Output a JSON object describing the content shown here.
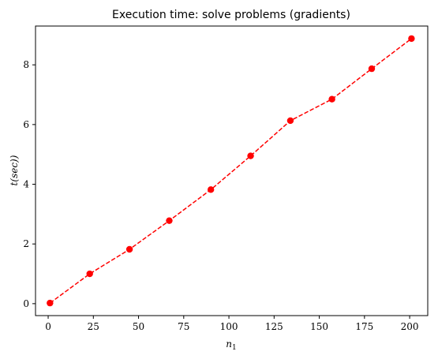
{
  "chart_data": {
    "type": "line",
    "title": "Execution time: solve problems (gradients)",
    "xlabel": "n",
    "xlabel_subscript": "1",
    "ylabel": "t(sec))",
    "xlim": [
      -7,
      210
    ],
    "ylim": [
      -0.4,
      9.3
    ],
    "xticks": [
      0,
      25,
      50,
      75,
      100,
      125,
      150,
      175,
      200
    ],
    "yticks": [
      0,
      2,
      4,
      6,
      8
    ],
    "grid": false,
    "series": [
      {
        "color": "#ff0000",
        "line_style": "dashed",
        "marker": "circle",
        "x": [
          1,
          23,
          45,
          67,
          90,
          112,
          134,
          157,
          179,
          201
        ],
        "y": [
          0.02,
          1.0,
          1.82,
          2.78,
          3.82,
          4.95,
          6.13,
          6.85,
          7.87,
          8.88
        ]
      }
    ]
  }
}
